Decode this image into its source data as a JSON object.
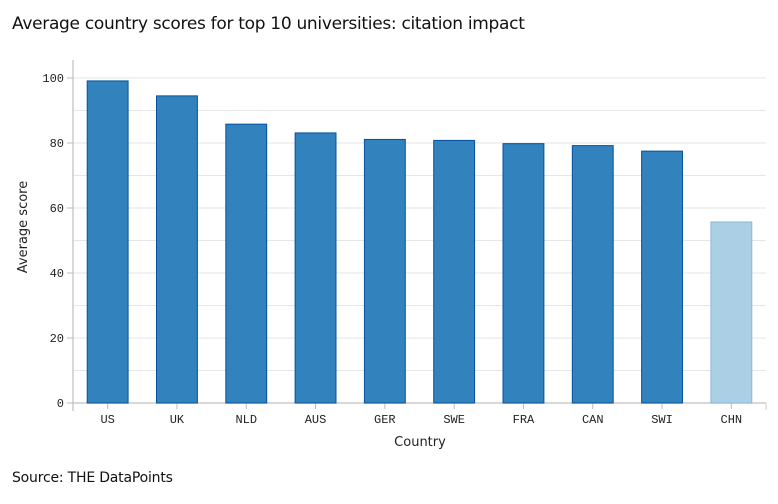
{
  "chart_data": {
    "type": "bar",
    "title": "Average country scores for top 10 universities: citation impact",
    "xlabel": "Country",
    "ylabel": "Average score",
    "ylim": [
      0,
      100
    ],
    "yticks": [
      "0",
      "20",
      "40",
      "60",
      "80",
      "100"
    ],
    "grid": true,
    "categories": [
      "US",
      "UK",
      "NLD",
      "AUS",
      "GER",
      "SWE",
      "FRA",
      "CAN",
      "SWI",
      "CHN"
    ],
    "values": [
      99.1,
      94.5,
      85.8,
      83.1,
      81.1,
      80.8,
      79.8,
      79.2,
      77.5,
      55.7
    ],
    "colors": {
      "primary": "#3182bd",
      "primary_stroke": "#08519c",
      "highlight": "#abd0e6",
      "highlight_stroke": "#8bb8d8"
    },
    "highlight_index": 9
  },
  "footer": {
    "source": "Source: THE DataPoints"
  }
}
